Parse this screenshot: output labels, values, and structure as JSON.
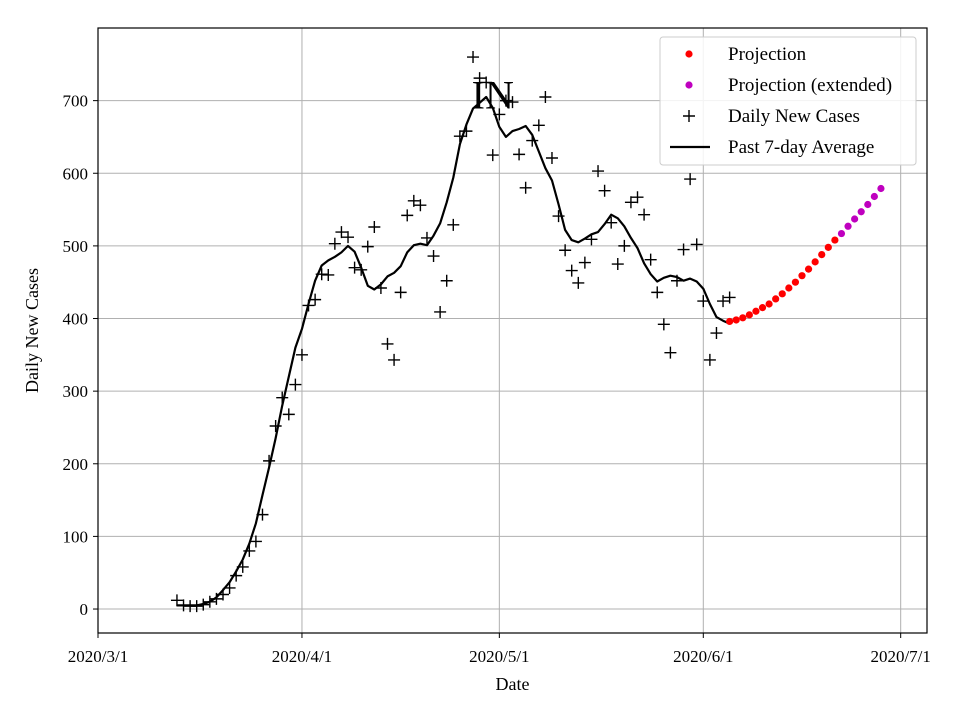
{
  "chart_data": {
    "type": "line",
    "title": "",
    "annotation": "IN",
    "xlabel": "Date",
    "ylabel": "Daily New Cases",
    "x_ticks": [
      {
        "date": "2020-03-01",
        "label": "2020/3/1"
      },
      {
        "date": "2020-04-01",
        "label": "2020/4/1"
      },
      {
        "date": "2020-05-01",
        "label": "2020/5/1"
      },
      {
        "date": "2020-06-01",
        "label": "2020/6/1"
      },
      {
        "date": "2020-07-01",
        "label": "2020/7/1"
      }
    ],
    "y_ticks": [
      0,
      100,
      200,
      300,
      400,
      500,
      600,
      700
    ],
    "xlim": [
      "2020-03-01",
      "2020-07-05"
    ],
    "ylim": [
      -33,
      800
    ],
    "grid": true,
    "legend_position": "top-right",
    "series": [
      {
        "name": "Projection",
        "kind": "dot",
        "color": "#ff0000",
        "points": [
          [
            "2020-06-05",
            396
          ],
          [
            "2020-06-06",
            398
          ],
          [
            "2020-06-07",
            401
          ],
          [
            "2020-06-08",
            405
          ],
          [
            "2020-06-09",
            410
          ],
          [
            "2020-06-10",
            415
          ],
          [
            "2020-06-11",
            420
          ],
          [
            "2020-06-12",
            427
          ],
          [
            "2020-06-13",
            434
          ],
          [
            "2020-06-14",
            442
          ],
          [
            "2020-06-15",
            450
          ],
          [
            "2020-06-16",
            459
          ],
          [
            "2020-06-17",
            468
          ],
          [
            "2020-06-18",
            478
          ],
          [
            "2020-06-19",
            488
          ],
          [
            "2020-06-20",
            498
          ],
          [
            "2020-06-21",
            508
          ]
        ]
      },
      {
        "name": "Projection (extended)",
        "kind": "dot",
        "color": "#bf00bf",
        "points": [
          [
            "2020-06-22",
            517
          ],
          [
            "2020-06-23",
            527
          ],
          [
            "2020-06-24",
            537
          ],
          [
            "2020-06-25",
            547
          ],
          [
            "2020-06-26",
            557
          ],
          [
            "2020-06-27",
            568
          ],
          [
            "2020-06-28",
            579
          ]
        ]
      },
      {
        "name": "Daily New Cases",
        "kind": "plus",
        "color": "#000000",
        "points": [
          [
            "2020-03-13",
            12
          ],
          [
            "2020-03-14",
            5
          ],
          [
            "2020-03-15",
            4
          ],
          [
            "2020-03-16",
            4
          ],
          [
            "2020-03-17",
            6
          ],
          [
            "2020-03-18",
            10
          ],
          [
            "2020-03-19",
            14
          ],
          [
            "2020-03-20",
            20
          ],
          [
            "2020-03-21",
            29
          ],
          [
            "2020-03-22",
            46
          ],
          [
            "2020-03-23",
            58
          ],
          [
            "2020-03-24",
            80
          ],
          [
            "2020-03-25",
            93
          ],
          [
            "2020-03-26",
            130
          ],
          [
            "2020-03-27",
            204
          ],
          [
            "2020-03-28",
            252
          ],
          [
            "2020-03-29",
            291
          ],
          [
            "2020-03-30",
            268
          ],
          [
            "2020-03-31",
            309
          ],
          [
            "2020-04-01",
            350
          ],
          [
            "2020-04-02",
            418
          ],
          [
            "2020-04-03",
            426
          ],
          [
            "2020-04-04",
            461
          ],
          [
            "2020-04-05",
            460
          ],
          [
            "2020-04-06",
            503
          ],
          [
            "2020-04-07",
            519
          ],
          [
            "2020-04-08",
            512
          ],
          [
            "2020-04-09",
            470
          ],
          [
            "2020-04-10",
            467
          ],
          [
            "2020-04-11",
            499
          ],
          [
            "2020-04-12",
            526
          ],
          [
            "2020-04-13",
            442
          ],
          [
            "2020-04-14",
            365
          ],
          [
            "2020-04-15",
            343
          ],
          [
            "2020-04-16",
            436
          ],
          [
            "2020-04-17",
            542
          ],
          [
            "2020-04-18",
            562
          ],
          [
            "2020-04-19",
            556
          ],
          [
            "2020-04-20",
            511
          ],
          [
            "2020-04-21",
            486
          ],
          [
            "2020-04-22",
            409
          ],
          [
            "2020-04-23",
            452
          ],
          [
            "2020-04-24",
            529
          ],
          [
            "2020-04-25",
            651
          ],
          [
            "2020-04-26",
            658
          ],
          [
            "2020-04-27",
            760
          ],
          [
            "2020-04-28",
            731
          ],
          [
            "2020-04-29",
            725
          ],
          [
            "2020-04-30",
            625
          ],
          [
            "2020-05-01",
            681
          ],
          [
            "2020-05-02",
            700
          ],
          [
            "2020-05-03",
            698
          ],
          [
            "2020-05-04",
            626
          ],
          [
            "2020-05-05",
            580
          ],
          [
            "2020-05-06",
            645
          ],
          [
            "2020-05-07",
            666
          ],
          [
            "2020-05-08",
            705
          ],
          [
            "2020-05-09",
            621
          ],
          [
            "2020-05-10",
            541
          ],
          [
            "2020-05-11",
            494
          ],
          [
            "2020-05-12",
            466
          ],
          [
            "2020-05-13",
            449
          ],
          [
            "2020-05-14",
            477
          ],
          [
            "2020-05-15",
            509
          ],
          [
            "2020-05-16",
            603
          ],
          [
            "2020-05-17",
            576
          ],
          [
            "2020-05-18",
            532
          ],
          [
            "2020-05-19",
            475
          ],
          [
            "2020-05-20",
            500
          ],
          [
            "2020-05-21",
            560
          ],
          [
            "2020-05-22",
            567
          ],
          [
            "2020-05-23",
            543
          ],
          [
            "2020-05-24",
            481
          ],
          [
            "2020-05-25",
            436
          ],
          [
            "2020-05-26",
            392
          ],
          [
            "2020-05-27",
            353
          ],
          [
            "2020-05-28",
            452
          ],
          [
            "2020-05-29",
            495
          ],
          [
            "2020-05-30",
            592
          ],
          [
            "2020-05-31",
            502
          ],
          [
            "2020-06-01",
            424
          ],
          [
            "2020-06-02",
            343
          ],
          [
            "2020-06-03",
            380
          ],
          [
            "2020-06-04",
            424
          ],
          [
            "2020-06-05",
            429
          ]
        ]
      },
      {
        "name": "Past 7-day Average",
        "kind": "line",
        "color": "#000000",
        "points": [
          [
            "2020-03-13",
            5
          ],
          [
            "2020-03-14",
            5
          ],
          [
            "2020-03-15",
            5
          ],
          [
            "2020-03-16",
            5
          ],
          [
            "2020-03-17",
            7
          ],
          [
            "2020-03-18",
            10
          ],
          [
            "2020-03-19",
            16
          ],
          [
            "2020-03-20",
            26
          ],
          [
            "2020-03-21",
            37
          ],
          [
            "2020-03-22",
            52
          ],
          [
            "2020-03-23",
            68
          ],
          [
            "2020-03-24",
            90
          ],
          [
            "2020-03-25",
            118
          ],
          [
            "2020-03-26",
            157
          ],
          [
            "2020-03-27",
            195
          ],
          [
            "2020-03-28",
            235
          ],
          [
            "2020-03-29",
            280
          ],
          [
            "2020-03-30",
            320
          ],
          [
            "2020-03-31",
            360
          ],
          [
            "2020-04-01",
            386
          ],
          [
            "2020-04-02",
            420
          ],
          [
            "2020-04-03",
            452
          ],
          [
            "2020-04-04",
            473
          ],
          [
            "2020-04-05",
            480
          ],
          [
            "2020-04-06",
            485
          ],
          [
            "2020-04-07",
            491
          ],
          [
            "2020-04-08",
            500
          ],
          [
            "2020-04-09",
            492
          ],
          [
            "2020-04-10",
            470
          ],
          [
            "2020-04-11",
            445
          ],
          [
            "2020-04-12",
            440
          ],
          [
            "2020-04-13",
            447
          ],
          [
            "2020-04-14",
            458
          ],
          [
            "2020-04-15",
            463
          ],
          [
            "2020-04-16",
            472
          ],
          [
            "2020-04-17",
            491
          ],
          [
            "2020-04-18",
            501
          ],
          [
            "2020-04-19",
            503
          ],
          [
            "2020-04-20",
            501
          ],
          [
            "2020-04-21",
            514
          ],
          [
            "2020-04-22",
            531
          ],
          [
            "2020-04-23",
            560
          ],
          [
            "2020-04-24",
            594
          ],
          [
            "2020-04-25",
            640
          ],
          [
            "2020-04-26",
            667
          ],
          [
            "2020-04-27",
            689
          ],
          [
            "2020-04-28",
            697
          ],
          [
            "2020-04-29",
            705
          ],
          [
            "2020-04-30",
            690
          ],
          [
            "2020-05-01",
            664
          ],
          [
            "2020-05-02",
            650
          ],
          [
            "2020-05-03",
            658
          ],
          [
            "2020-05-04",
            661
          ],
          [
            "2020-05-05",
            665
          ],
          [
            "2020-05-06",
            653
          ],
          [
            "2020-05-07",
            630
          ],
          [
            "2020-05-08",
            607
          ],
          [
            "2020-05-09",
            590
          ],
          [
            "2020-05-10",
            557
          ],
          [
            "2020-05-11",
            522
          ],
          [
            "2020-05-12",
            508
          ],
          [
            "2020-05-13",
            505
          ],
          [
            "2020-05-14",
            510
          ],
          [
            "2020-05-15",
            516
          ],
          [
            "2020-05-16",
            519
          ],
          [
            "2020-05-17",
            530
          ],
          [
            "2020-05-18",
            543
          ],
          [
            "2020-05-19",
            538
          ],
          [
            "2020-05-20",
            527
          ],
          [
            "2020-05-21",
            511
          ],
          [
            "2020-05-22",
            497
          ],
          [
            "2020-05-23",
            476
          ],
          [
            "2020-05-24",
            461
          ],
          [
            "2020-05-25",
            451
          ],
          [
            "2020-05-26",
            456
          ],
          [
            "2020-05-27",
            459
          ],
          [
            "2020-05-28",
            457
          ],
          [
            "2020-05-29",
            452
          ],
          [
            "2020-05-30",
            455
          ],
          [
            "2020-05-31",
            451
          ],
          [
            "2020-06-01",
            441
          ],
          [
            "2020-06-02",
            420
          ],
          [
            "2020-06-03",
            402
          ],
          [
            "2020-06-04",
            397
          ],
          [
            "2020-06-05",
            393
          ]
        ]
      }
    ]
  }
}
